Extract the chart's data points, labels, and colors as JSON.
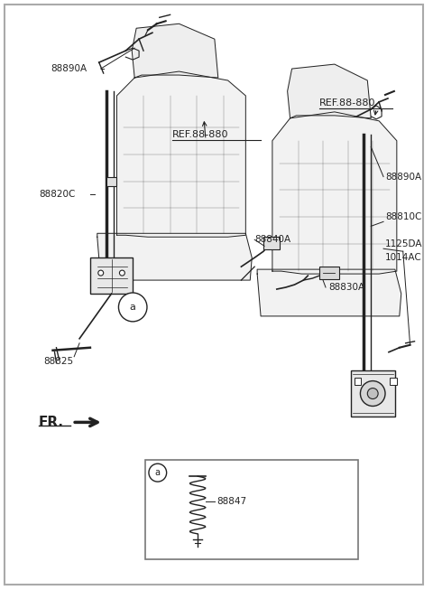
{
  "bg_color": "#ffffff",
  "line_color": "#222222",
  "fig_width": 4.8,
  "fig_height": 6.53,
  "labels": {
    "88890A_left": "88890A",
    "88820C": "88820C",
    "88840A": "88840A",
    "88830A": "88830A",
    "88825": "88825",
    "88890A_right": "88890A",
    "88810C": "88810C",
    "1125DA": "1125DA",
    "1014AC": "1014AC",
    "88847": "88847",
    "REF_left": "REF.88-880",
    "REF_right": "REF.88-880",
    "FR": "FR.",
    "a_main": "a",
    "a_box": "a"
  }
}
